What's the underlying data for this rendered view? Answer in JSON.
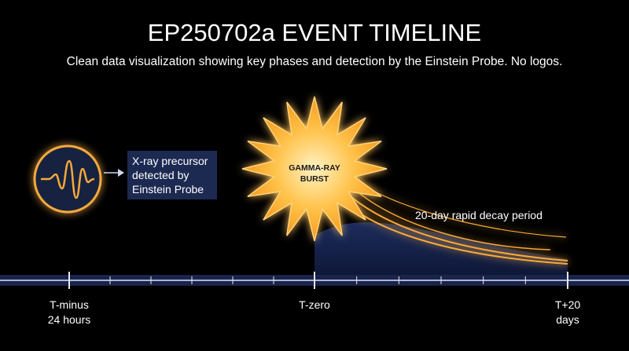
{
  "header": {
    "title": "EP250702a EVENT TIMELINE",
    "subtitle": "Clean data visualization showing key phases and detection by the Einstein Probe. No logos."
  },
  "precursor": {
    "lines": [
      "X-ray precursor",
      "detected by",
      "Einstein Probe"
    ]
  },
  "burst": {
    "lines": [
      "GAMMA-RAY",
      "BURST"
    ]
  },
  "decay": {
    "label": "20-day rapid decay period"
  },
  "timeline": {
    "markers": [
      {
        "lines": [
          "T-minus",
          "24 hours"
        ]
      },
      {
        "lines": [
          "T-zero"
        ]
      },
      {
        "lines": [
          "T+20",
          "days"
        ]
      }
    ]
  }
}
